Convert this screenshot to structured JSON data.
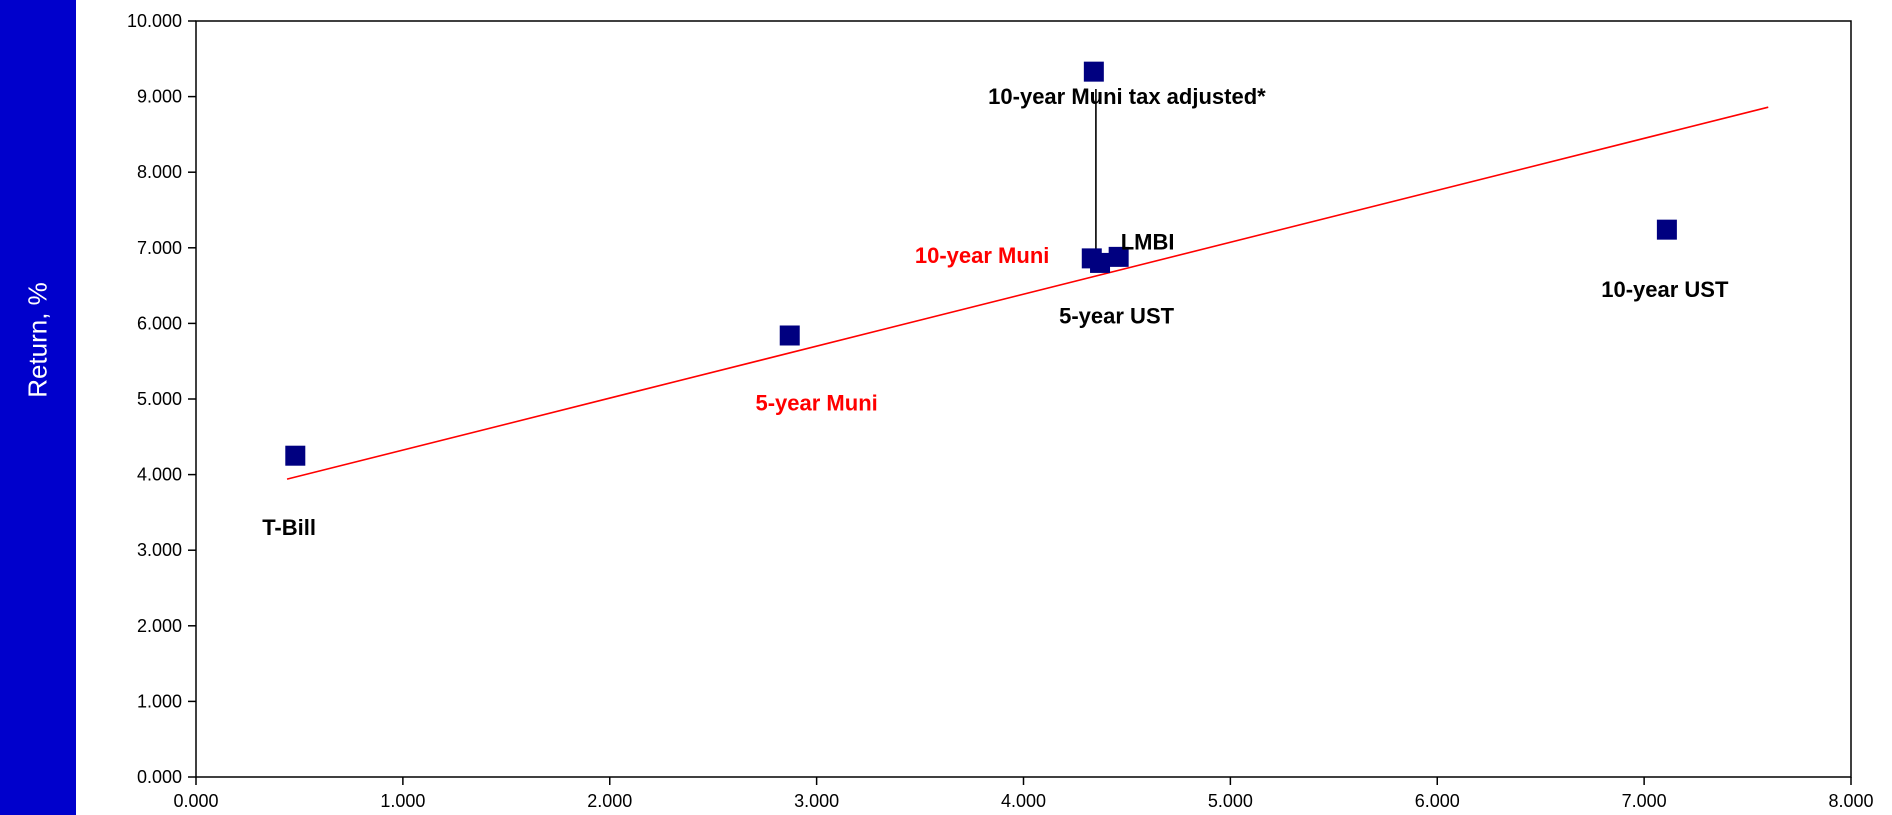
{
  "chart_data": {
    "type": "scatter",
    "ylabel": "Return, %",
    "xlim": [
      0,
      8
    ],
    "ylim": [
      0,
      10
    ],
    "x_ticks": [
      "0.000",
      "1.000",
      "2.000",
      "3.000",
      "4.000",
      "5.000",
      "6.000",
      "7.000",
      "8.000"
    ],
    "y_ticks": [
      "0.000",
      "1.000",
      "2.000",
      "3.000",
      "4.000",
      "5.000",
      "6.000",
      "7.000",
      "8.000",
      "9.000",
      "10.000"
    ],
    "points": [
      {
        "x": 0.48,
        "y": 4.25
      },
      {
        "x": 2.87,
        "y": 5.84
      },
      {
        "x": 4.33,
        "y": 6.86
      },
      {
        "x": 4.37,
        "y": 6.8
      },
      {
        "x": 4.46,
        "y": 6.88
      },
      {
        "x": 4.34,
        "y": 9.33
      },
      {
        "x": 7.11,
        "y": 7.24
      }
    ],
    "annotations": [
      {
        "text": "T-Bill",
        "x": 0.45,
        "y": 3.2,
        "color": "#000000"
      },
      {
        "text": "5-year Muni",
        "x": 3.0,
        "y": 4.85,
        "color": "#ff0000"
      },
      {
        "text": "10-year Muni",
        "x": 3.8,
        "y": 6.8,
        "color": "#ff0000"
      },
      {
        "text": "5-year UST",
        "x": 4.45,
        "y": 6.0,
        "color": "#000000"
      },
      {
        "text": "LMBI",
        "x": 4.6,
        "y": 6.98,
        "color": "#000000"
      },
      {
        "text": "10-year Muni tax adjusted*",
        "x": 4.5,
        "y": 8.9,
        "color": "#000000"
      },
      {
        "text": "10-year UST",
        "x": 7.1,
        "y": 6.35,
        "color": "#000000"
      }
    ],
    "trendline": {
      "x": [
        0.44,
        7.6
      ],
      "y": [
        3.94,
        8.86
      ],
      "color": "#ff0000"
    },
    "connector": {
      "x": 4.35,
      "y": [
        9.1,
        6.86
      ]
    },
    "marker_color": "#000080",
    "axis_color": "#000000",
    "grid": false
  }
}
